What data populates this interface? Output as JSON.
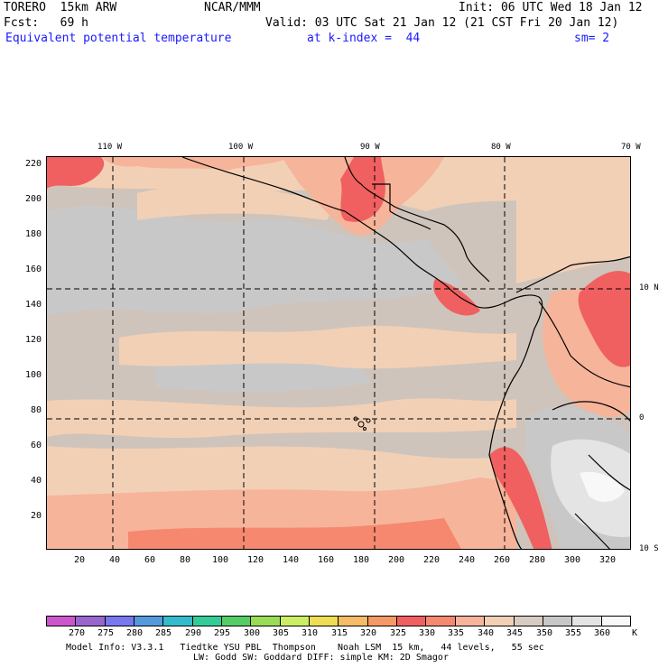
{
  "header": {
    "model": "TORERO  15km ARW",
    "org": "NCAR/MMM",
    "init": "Init: 06 UTC Wed 18 Jan 12",
    "fcst": "Fcst:   69 h",
    "valid": "Valid: 03 UTC Sat 21 Jan 12 (21 CST Fri 20 Jan 12)",
    "field": "Equivalent potential temperature",
    "level": "at k-index =  44",
    "smooth": "sm= 2"
  },
  "axes": {
    "y_ticks": [
      "220",
      "200",
      "180",
      "160",
      "140",
      "120",
      "100",
      "80",
      "60",
      "40",
      "20"
    ],
    "x_ticks": [
      "20",
      "40",
      "60",
      "80",
      "100",
      "120",
      "140",
      "160",
      "180",
      "200",
      "220",
      "240",
      "260",
      "280",
      "300",
      "320"
    ],
    "lon_ticks": [
      "110 W",
      "100 W",
      "90 W",
      "80 W",
      "70 W"
    ],
    "lat_ticks": [
      "10 N",
      "0",
      "10 S"
    ]
  },
  "colorbar": {
    "labels": [
      "270",
      "275",
      "280",
      "285",
      "290",
      "295",
      "300",
      "305",
      "310",
      "315",
      "320",
      "325",
      "330",
      "335",
      "340",
      "345",
      "350",
      "355",
      "360"
    ],
    "unit": "K",
    "colors": [
      "#cc55cc",
      "#9966cc",
      "#7777ee",
      "#5599dd",
      "#33bbcc",
      "#33cc99",
      "#55cc66",
      "#99dd55",
      "#ccee66",
      "#eedd55",
      "#f5bb66",
      "#f59a66",
      "#f06060",
      "#f5886e",
      "#f6b49a",
      "#f2d0b6",
      "#d8ccc2",
      "#c8c8c8",
      "#e4e4e4",
      "#f8f8f8"
    ]
  },
  "footer": {
    "line1": "Model Info: V3.3.1   Tiedtke YSU PBL  Thompson    Noah LSM  15 km,   44 levels,   55 sec",
    "line2": "LW: Godd SW: Goddard DIFF: simple KM: 2D Smagor"
  }
}
